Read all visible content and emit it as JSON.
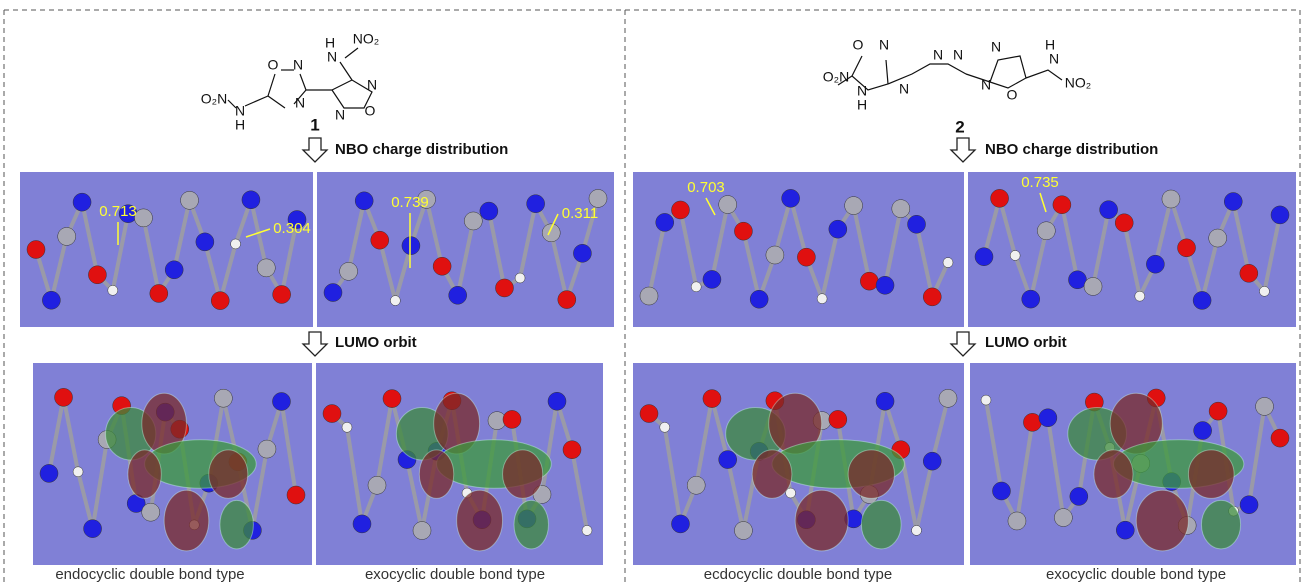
{
  "compounds": [
    {
      "label": "1",
      "atoms": [
        "H",
        "N",
        "NO₂",
        "O",
        "N",
        "N",
        "O₂N",
        "N",
        "H",
        "N",
        "O",
        "N"
      ],
      "nbo_title": "NBO charge distribution",
      "lumo_title": "LUMO orbit",
      "charges": [
        "0.713",
        "0.304",
        "0.739",
        "0.311"
      ],
      "captions": [
        "endocyclic double bond type",
        "exocyclic double bond type"
      ]
    },
    {
      "label": "2",
      "atoms": [
        "O",
        "N",
        "O₂N",
        "N",
        "H",
        "N",
        "N",
        "N",
        "N",
        "N",
        "O",
        "H",
        "N",
        "NO₂"
      ],
      "nbo_title": "NBO charge distribution",
      "lumo_title": "LUMO orbit",
      "charges": [
        "0.703",
        "0.735"
      ],
      "captions": [
        "ecdocyclic double bond type",
        "exocyclic double bond type"
      ]
    }
  ]
}
